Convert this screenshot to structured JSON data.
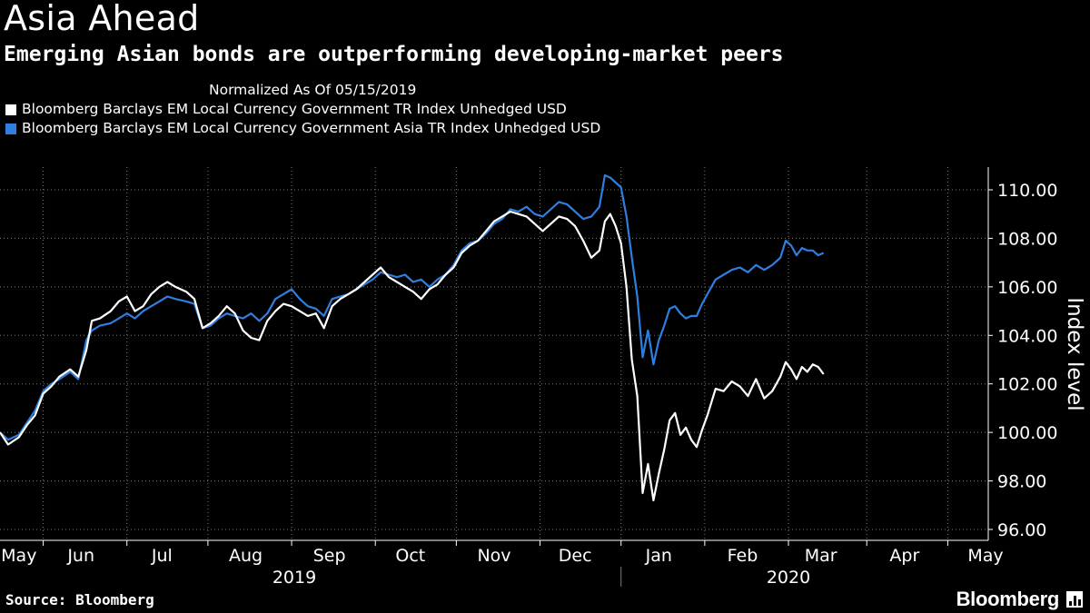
{
  "title": "Asia Ahead",
  "subtitle": "Emerging Asian bonds are outperforming developing-market peers",
  "legend": {
    "note": "Normalized As Of 05/15/2019",
    "entries": [
      {
        "label": "Bloomberg Barclays EM Local Currency Government TR Index Unhedged USD",
        "color": "#ffffff"
      },
      {
        "label": "Bloomberg Barclays EM Local Currency Government Asia TR Index Unhedged USD",
        "color": "#2e7fe0"
      }
    ]
  },
  "source": "Source: Bloomberg",
  "logo_text": "Bloomberg",
  "chart_data": {
    "type": "line",
    "title": "Asia Ahead",
    "ylabel": "Index level",
    "xlabel": "",
    "ylim": [
      96,
      111.5
    ],
    "xlim": [
      0,
      366
    ],
    "y_ticks": [
      96,
      98,
      100,
      102,
      104,
      106,
      108,
      110
    ],
    "y_tick_labels": [
      "96.00",
      "98.00",
      "100.00",
      "102.00",
      "104.00",
      "106.00",
      "108.00",
      "110.00"
    ],
    "x_month_labels": [
      "May",
      "Jun",
      "Jul",
      "Aug",
      "Sep",
      "Oct",
      "Nov",
      "Dec",
      "Jan",
      "Feb",
      "Mar",
      "Apr",
      "May"
    ],
    "x_month_label_days": [
      7,
      30,
      60,
      91,
      122,
      152,
      183,
      213,
      244,
      275,
      304,
      335,
      365
    ],
    "x_month_tick_days": [
      16,
      47,
      77,
      108,
      139,
      169,
      200,
      230,
      261,
      292,
      321,
      351
    ],
    "x_year_labels": [
      "2019",
      "2020"
    ],
    "x_year_label_days": [
      109,
      292
    ],
    "x_year_divider_day": 230,
    "series": [
      {
        "name": "Bloomberg Barclays EM Local Currency Government TR Index Unhedged USD",
        "color": "#ffffff",
        "points": [
          [
            0,
            100.0
          ],
          [
            3,
            99.5
          ],
          [
            7,
            99.8
          ],
          [
            10,
            100.3
          ],
          [
            13,
            100.7
          ],
          [
            16,
            101.6
          ],
          [
            19,
            101.9
          ],
          [
            22,
            102.3
          ],
          [
            26,
            102.6
          ],
          [
            29,
            102.3
          ],
          [
            32,
            103.4
          ],
          [
            34,
            104.6
          ],
          [
            37,
            104.7
          ],
          [
            41,
            105.0
          ],
          [
            44,
            105.4
          ],
          [
            47,
            105.6
          ],
          [
            50,
            105.0
          ],
          [
            53,
            105.2
          ],
          [
            56,
            105.7
          ],
          [
            59,
            106.0
          ],
          [
            62,
            106.2
          ],
          [
            65,
            106.0
          ],
          [
            69,
            105.8
          ],
          [
            72,
            105.5
          ],
          [
            75,
            104.3
          ],
          [
            78,
            104.5
          ],
          [
            81,
            104.8
          ],
          [
            84,
            105.2
          ],
          [
            87,
            104.9
          ],
          [
            90,
            104.2
          ],
          [
            93,
            103.9
          ],
          [
            96,
            103.8
          ],
          [
            99,
            104.6
          ],
          [
            102,
            105.0
          ],
          [
            105,
            105.3
          ],
          [
            108,
            105.2
          ],
          [
            111,
            105.0
          ],
          [
            114,
            104.8
          ],
          [
            117,
            104.9
          ],
          [
            120,
            104.3
          ],
          [
            123,
            105.2
          ],
          [
            126,
            105.5
          ],
          [
            129,
            105.7
          ],
          [
            132,
            105.9
          ],
          [
            135,
            106.2
          ],
          [
            138,
            106.5
          ],
          [
            141,
            106.8
          ],
          [
            144,
            106.4
          ],
          [
            147,
            106.2
          ],
          [
            150,
            106.0
          ],
          [
            153,
            105.8
          ],
          [
            156,
            105.5
          ],
          [
            159,
            105.9
          ],
          [
            162,
            106.1
          ],
          [
            165,
            106.5
          ],
          [
            168,
            106.8
          ],
          [
            171,
            107.4
          ],
          [
            174,
            107.7
          ],
          [
            177,
            107.9
          ],
          [
            180,
            108.3
          ],
          [
            183,
            108.7
          ],
          [
            186,
            108.9
          ],
          [
            189,
            109.1
          ],
          [
            192,
            109.0
          ],
          [
            195,
            108.9
          ],
          [
            198,
            108.6
          ],
          [
            201,
            108.3
          ],
          [
            204,
            108.6
          ],
          [
            207,
            108.9
          ],
          [
            210,
            108.8
          ],
          [
            213,
            108.5
          ],
          [
            216,
            107.9
          ],
          [
            219,
            107.2
          ],
          [
            222,
            107.5
          ],
          [
            224,
            108.7
          ],
          [
            226,
            109.0
          ],
          [
            228,
            108.5
          ],
          [
            230,
            107.8
          ],
          [
            232,
            106.0
          ],
          [
            234,
            103.0
          ],
          [
            236,
            101.5
          ],
          [
            238,
            97.5
          ],
          [
            240,
            98.7
          ],
          [
            242,
            97.2
          ],
          [
            244,
            98.3
          ],
          [
            246,
            99.3
          ],
          [
            248,
            100.5
          ],
          [
            250,
            100.8
          ],
          [
            252,
            99.9
          ],
          [
            254,
            100.2
          ],
          [
            256,
            99.7
          ],
          [
            258,
            99.4
          ],
          [
            260,
            100.1
          ],
          [
            262,
            100.7
          ],
          [
            265,
            101.8
          ],
          [
            268,
            101.7
          ],
          [
            271,
            102.1
          ],
          [
            274,
            101.9
          ],
          [
            277,
            101.5
          ],
          [
            280,
            102.2
          ],
          [
            283,
            101.4
          ],
          [
            286,
            101.7
          ],
          [
            289,
            102.3
          ],
          [
            291,
            102.9
          ],
          [
            293,
            102.6
          ],
          [
            295,
            102.2
          ],
          [
            297,
            102.7
          ],
          [
            299,
            102.5
          ],
          [
            301,
            102.8
          ],
          [
            303,
            102.7
          ],
          [
            305,
            102.4
          ]
        ]
      },
      {
        "name": "Bloomberg Barclays EM Local Currency Government Asia TR Index Unhedged USD",
        "color": "#2e7fe0",
        "points": [
          [
            0,
            100.0
          ],
          [
            3,
            99.7
          ],
          [
            7,
            99.9
          ],
          [
            10,
            100.4
          ],
          [
            13,
            100.9
          ],
          [
            16,
            101.7
          ],
          [
            19,
            102.0
          ],
          [
            22,
            102.2
          ],
          [
            26,
            102.5
          ],
          [
            29,
            102.2
          ],
          [
            32,
            103.8
          ],
          [
            34,
            104.2
          ],
          [
            37,
            104.4
          ],
          [
            41,
            104.5
          ],
          [
            44,
            104.7
          ],
          [
            47,
            104.9
          ],
          [
            50,
            104.7
          ],
          [
            53,
            105.0
          ],
          [
            56,
            105.2
          ],
          [
            59,
            105.4
          ],
          [
            62,
            105.6
          ],
          [
            65,
            105.5
          ],
          [
            69,
            105.4
          ],
          [
            72,
            105.3
          ],
          [
            75,
            104.3
          ],
          [
            78,
            104.4
          ],
          [
            81,
            104.7
          ],
          [
            84,
            104.9
          ],
          [
            87,
            104.8
          ],
          [
            90,
            104.7
          ],
          [
            93,
            104.9
          ],
          [
            96,
            104.6
          ],
          [
            99,
            104.9
          ],
          [
            102,
            105.5
          ],
          [
            105,
            105.7
          ],
          [
            108,
            105.9
          ],
          [
            111,
            105.5
          ],
          [
            114,
            105.2
          ],
          [
            117,
            105.1
          ],
          [
            120,
            104.8
          ],
          [
            123,
            105.5
          ],
          [
            126,
            105.6
          ],
          [
            129,
            105.7
          ],
          [
            132,
            105.9
          ],
          [
            135,
            106.1
          ],
          [
            138,
            106.3
          ],
          [
            141,
            106.6
          ],
          [
            144,
            106.5
          ],
          [
            147,
            106.4
          ],
          [
            150,
            106.5
          ],
          [
            153,
            106.2
          ],
          [
            156,
            106.3
          ],
          [
            159,
            106.0
          ],
          [
            162,
            106.3
          ],
          [
            165,
            106.5
          ],
          [
            168,
            106.9
          ],
          [
            171,
            107.5
          ],
          [
            174,
            107.8
          ],
          [
            177,
            107.9
          ],
          [
            180,
            108.2
          ],
          [
            183,
            108.6
          ],
          [
            186,
            108.8
          ],
          [
            189,
            109.2
          ],
          [
            192,
            109.1
          ],
          [
            195,
            109.3
          ],
          [
            198,
            109.0
          ],
          [
            201,
            108.9
          ],
          [
            204,
            109.2
          ],
          [
            207,
            109.5
          ],
          [
            210,
            109.4
          ],
          [
            213,
            109.1
          ],
          [
            216,
            108.8
          ],
          [
            219,
            108.9
          ],
          [
            222,
            109.3
          ],
          [
            224,
            110.6
          ],
          [
            226,
            110.5
          ],
          [
            228,
            110.3
          ],
          [
            230,
            110.1
          ],
          [
            232,
            108.9
          ],
          [
            234,
            107.2
          ],
          [
            236,
            105.6
          ],
          [
            238,
            103.1
          ],
          [
            240,
            104.2
          ],
          [
            242,
            102.8
          ],
          [
            244,
            103.8
          ],
          [
            246,
            104.4
          ],
          [
            248,
            105.1
          ],
          [
            250,
            105.2
          ],
          [
            252,
            104.9
          ],
          [
            254,
            104.7
          ],
          [
            256,
            104.8
          ],
          [
            258,
            104.8
          ],
          [
            260,
            105.3
          ],
          [
            262,
            105.7
          ],
          [
            265,
            106.3
          ],
          [
            268,
            106.5
          ],
          [
            271,
            106.7
          ],
          [
            274,
            106.8
          ],
          [
            277,
            106.6
          ],
          [
            280,
            106.9
          ],
          [
            283,
            106.7
          ],
          [
            286,
            106.9
          ],
          [
            289,
            107.2
          ],
          [
            291,
            107.9
          ],
          [
            293,
            107.7
          ],
          [
            295,
            107.3
          ],
          [
            297,
            107.6
          ],
          [
            299,
            107.5
          ],
          [
            301,
            107.5
          ],
          [
            303,
            107.3
          ],
          [
            305,
            107.4
          ]
        ]
      }
    ]
  }
}
